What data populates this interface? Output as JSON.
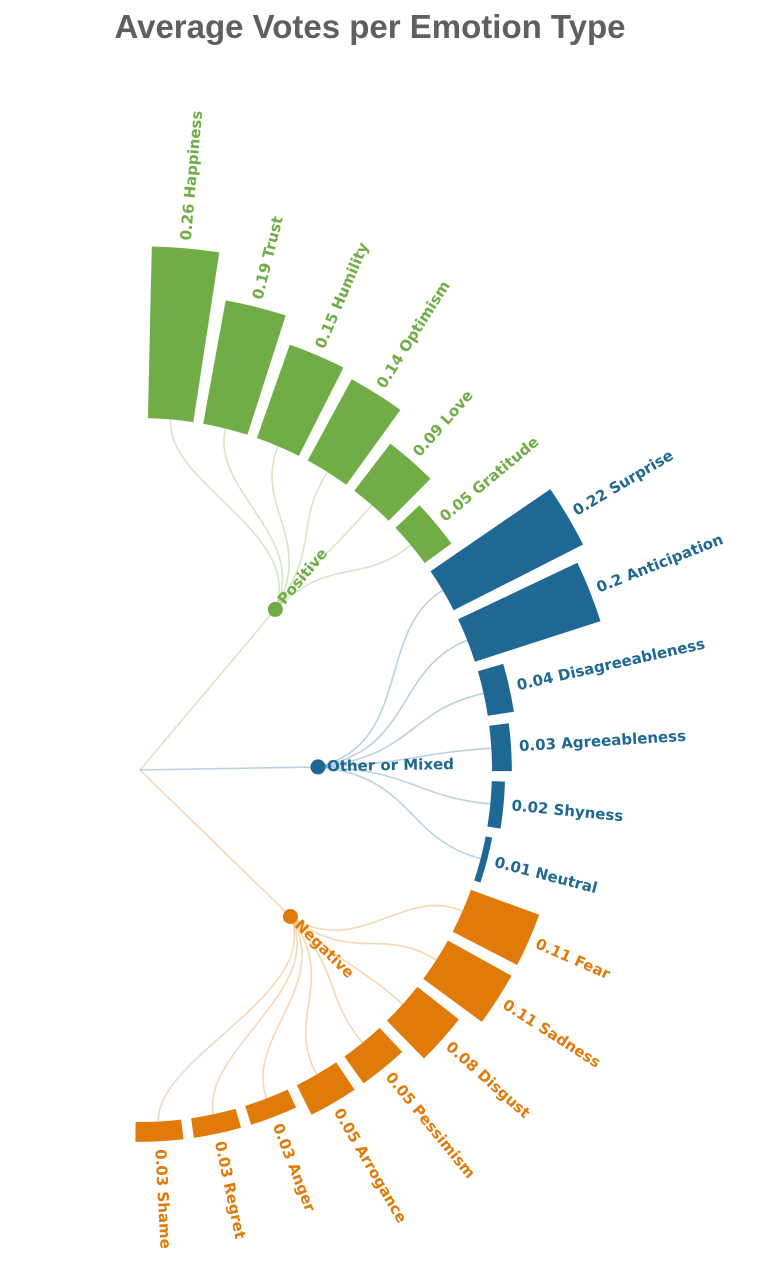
{
  "chart_data": {
    "type": "radial-tree-bar",
    "title": "Average Votes per Emotion Type",
    "colors": {
      "Positive": "#70ad47",
      "Other or Mixed": "#1f6894",
      "Negative": "#e07b0a"
    },
    "groups": [
      {
        "name": "Positive",
        "items": [
          {
            "label": "Happiness",
            "value": 0.26
          },
          {
            "label": "Trust",
            "value": 0.19
          },
          {
            "label": "Humility",
            "value": 0.15
          },
          {
            "label": "Optimism",
            "value": 0.14
          },
          {
            "label": "Love",
            "value": 0.09
          },
          {
            "label": "Gratitude",
            "value": 0.05
          }
        ]
      },
      {
        "name": "Other or Mixed",
        "items": [
          {
            "label": "Surprise",
            "value": 0.22
          },
          {
            "label": "Anticipation",
            "value": 0.2
          },
          {
            "label": "Disagreeableness",
            "value": 0.04
          },
          {
            "label": "Agreeableness",
            "value": 0.03
          },
          {
            "label": "Shyness",
            "value": 0.02
          },
          {
            "label": "Neutral",
            "value": 0.01
          }
        ]
      },
      {
        "name": "Negative",
        "items": [
          {
            "label": "Fear",
            "value": 0.11
          },
          {
            "label": "Sadness",
            "value": 0.11
          },
          {
            "label": "Disgust",
            "value": 0.08
          },
          {
            "label": "Pessimism",
            "value": 0.05
          },
          {
            "label": "Arrogance",
            "value": 0.05
          },
          {
            "label": "Anger",
            "value": 0.03
          },
          {
            "label": "Regret",
            "value": 0.03
          },
          {
            "label": "Shame",
            "value": 0.03
          }
        ]
      }
    ]
  }
}
